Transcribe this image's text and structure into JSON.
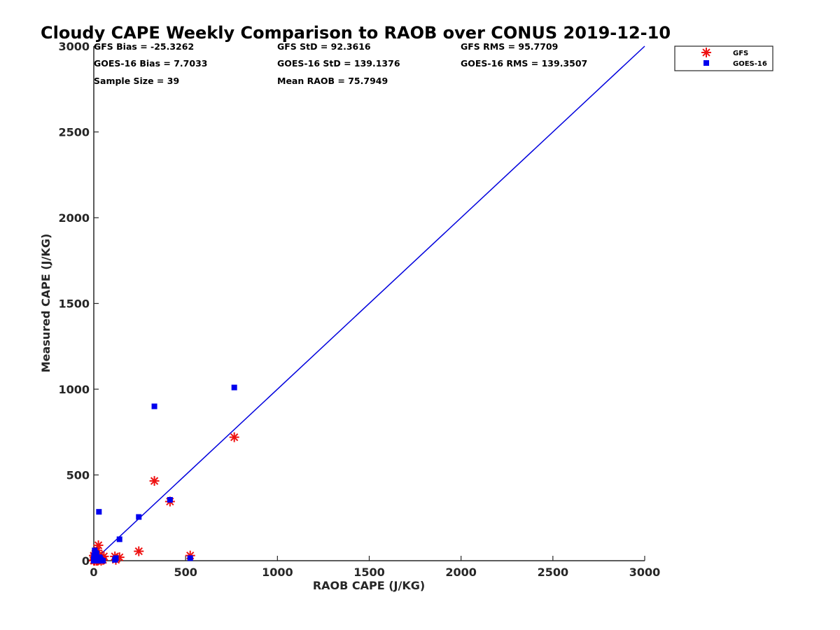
{
  "chart_data": {
    "type": "scatter",
    "title": "Cloudy CAPE Weekly Comparison to RAOB over CONUS 2019-12-10",
    "xlabel": "RAOB CAPE (J/KG)",
    "ylabel": "Measured CAPE (J/KG)",
    "xlim": [
      0,
      3000
    ],
    "ylim": [
      0,
      3000
    ],
    "xticks": [
      "0",
      "500",
      "1000",
      "1500",
      "2000",
      "2500",
      "3000"
    ],
    "yticks": [
      "0",
      "500",
      "1000",
      "1500",
      "2000",
      "2500",
      "3000"
    ],
    "grid": false,
    "legend_position": "top-right-outside",
    "stats": [
      "GFS Bias = -25.3262",
      "GOES-16 Bias = 7.7033",
      "Sample Size = 39",
      "GFS StD = 92.3616",
      "GOES-16 StD = 139.1376",
      "Mean RAOB = 75.7949",
      "GFS RMS = 95.7709",
      "GOES-16 RMS = 139.3507"
    ],
    "reference_line": {
      "x": [
        0,
        3000
      ],
      "y": [
        0,
        3000
      ],
      "color": "#0000dd"
    },
    "series": [
      {
        "name": "GFS",
        "marker": "asterisk",
        "color": "#ee1111",
        "points": [
          [
            0,
            0
          ],
          [
            2,
            5
          ],
          [
            5,
            20
          ],
          [
            8,
            40
          ],
          [
            10,
            10
          ],
          [
            15,
            0
          ],
          [
            18,
            30
          ],
          [
            20,
            60
          ],
          [
            25,
            90
          ],
          [
            28,
            5
          ],
          [
            30,
            35
          ],
          [
            35,
            10
          ],
          [
            40,
            0
          ],
          [
            45,
            15
          ],
          [
            50,
            5
          ],
          [
            55,
            25
          ],
          [
            115,
            25
          ],
          [
            120,
            5
          ],
          [
            140,
            20
          ],
          [
            245,
            55
          ],
          [
            330,
            465
          ],
          [
            415,
            345
          ],
          [
            525,
            30
          ],
          [
            765,
            720
          ],
          [
            0,
            30
          ],
          [
            5,
            0
          ],
          [
            12,
            15
          ],
          [
            22,
            0
          ]
        ]
      },
      {
        "name": "GOES-16",
        "marker": "square",
        "color": "#0000ee",
        "points": [
          [
            0,
            10
          ],
          [
            2,
            30
          ],
          [
            5,
            60
          ],
          [
            8,
            0
          ],
          [
            10,
            20
          ],
          [
            15,
            40
          ],
          [
            18,
            5
          ],
          [
            22,
            0
          ],
          [
            25,
            10
          ],
          [
            28,
            285
          ],
          [
            30,
            20
          ],
          [
            40,
            5
          ],
          [
            50,
            0
          ],
          [
            115,
            5
          ],
          [
            120,
            15
          ],
          [
            140,
            125
          ],
          [
            245,
            255
          ],
          [
            330,
            900
          ],
          [
            415,
            355
          ],
          [
            525,
            15
          ],
          [
            765,
            1010
          ],
          [
            0,
            0
          ],
          [
            12,
            45
          ],
          [
            35,
            15
          ]
        ]
      }
    ]
  }
}
